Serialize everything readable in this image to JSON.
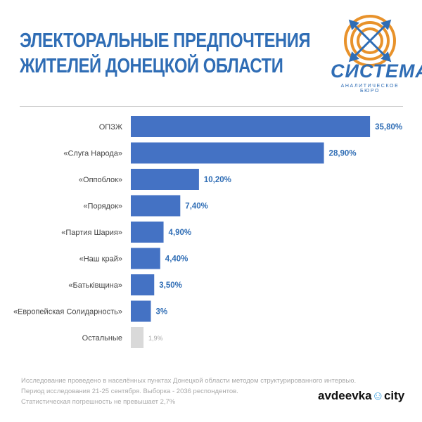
{
  "header": {
    "title_line1": "ЭЛЕКТОРАЛЬНЫЕ ПРЕДПОЧТЕНИЯ",
    "title_line2": "ЖИТЕЛЕЙ ДОНЕЦКОЙ ОБЛАСТИ"
  },
  "logo": {
    "name": "СИСТЕМА",
    "subtitle": "АНАЛИТИЧЕСКОЕ БЮРО",
    "colors": {
      "orange": "#e8922b",
      "blue": "#2f6db5"
    }
  },
  "chart_data": {
    "type": "bar",
    "orientation": "horizontal",
    "title": "ЭЛЕКТОРАЛЬНЫЕ ПРЕДПОЧТЕНИЯ ЖИТЕЛЕЙ ДОНЕЦКОЙ ОБЛАСТИ",
    "categories": [
      "ОПЗЖ",
      "«Слуга Народа»",
      "«Оппоблок»",
      "«Порядок»",
      "«Партия Шария»",
      "«Наш край»",
      "«Батьківщина»",
      "«Европейская Солидарность»",
      "Остальные"
    ],
    "values": [
      35.8,
      28.9,
      10.2,
      7.4,
      4.9,
      4.4,
      3.5,
      3.0,
      1.9
    ],
    "value_labels": [
      "35,80%",
      "28,90%",
      "10,20%",
      "7,40%",
      "4,90%",
      "4,40%",
      "3,50%",
      "3%",
      "1,9%"
    ],
    "xlim": [
      0,
      36
    ],
    "bar_color": "#4472c4",
    "other_color": "#d9d9d9",
    "label_color": "#2f6db5",
    "other_label_color": "#a9a9a9",
    "grid": false
  },
  "footer": {
    "line1": "Исследование проведено в населённых пунктах Донецкой области методом структурированного интервью.",
    "line2": "Период исследования 21-25 сентября. Выборка - 2036 респондентов.",
    "line3": "Статистическая погрешность не превышает 2,7%"
  },
  "brand": {
    "part1": "avdeevka",
    "mark": "☺",
    "part2": "city"
  }
}
